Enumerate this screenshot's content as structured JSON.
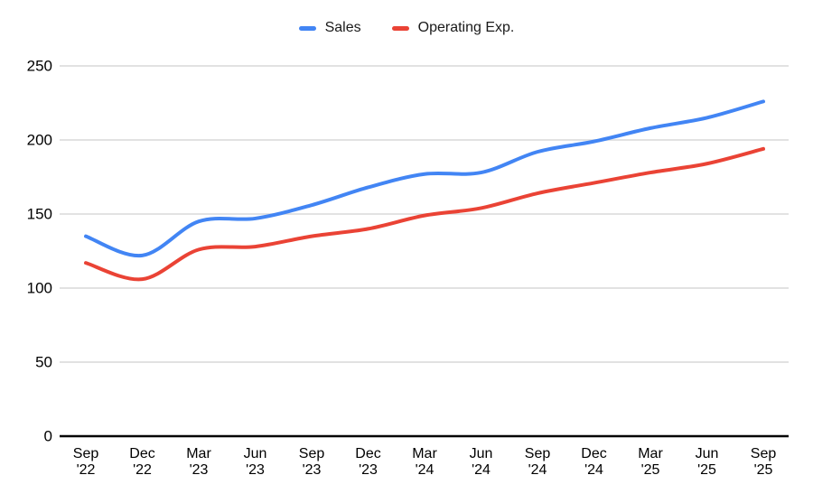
{
  "chart_data": {
    "type": "line",
    "title": "",
    "xlabel": "",
    "ylabel": "",
    "categories": [
      "Sep '22",
      "Dec '22",
      "Mar '23",
      "Jun '23",
      "Sep '23",
      "Dec '23",
      "Mar '24",
      "Jun '24",
      "Sep '24",
      "Dec '24",
      "Mar '25",
      "Jun '25",
      "Sep '25"
    ],
    "series": [
      {
        "name": "Sales",
        "color": "#4285F4",
        "values": [
          135,
          122,
          145,
          147,
          156,
          168,
          177,
          178,
          192,
          199,
          208,
          215,
          226
        ]
      },
      {
        "name": "Operating Exp.",
        "color": "#EA4335",
        "values": [
          117,
          106,
          126,
          128,
          135,
          140,
          149,
          154,
          164,
          171,
          178,
          184,
          194
        ]
      }
    ],
    "ylim": [
      0,
      250
    ],
    "yticks": [
      0,
      50,
      100,
      150,
      200,
      250
    ],
    "grid": true,
    "curve": "smooth",
    "legend_position": "top",
    "colors": {
      "gridline": "#d9d9d9",
      "axis_line": "#000000",
      "tick_text": "#000000",
      "background": "#ffffff"
    }
  }
}
